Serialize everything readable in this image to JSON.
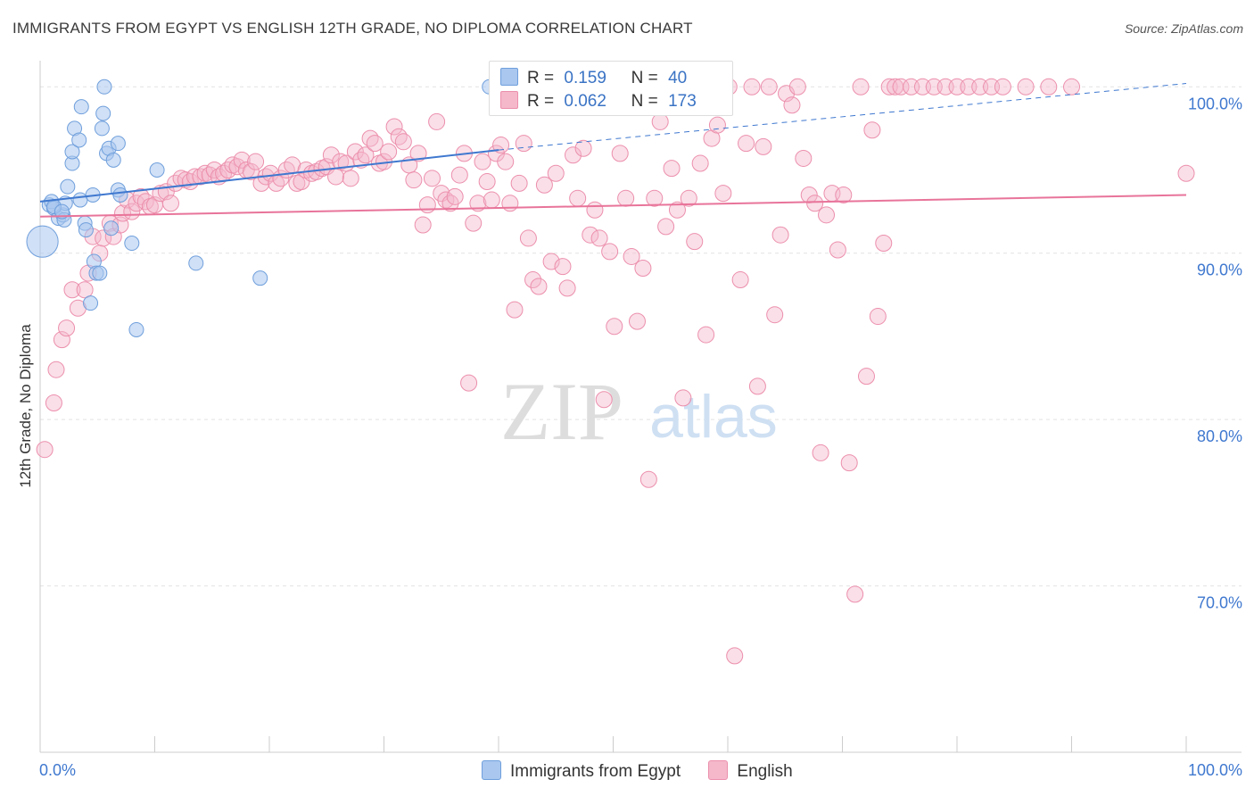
{
  "header": {
    "title": "IMMIGRANTS FROM EGYPT VS ENGLISH 12TH GRADE, NO DIPLOMA CORRELATION CHART",
    "source": "Source: ZipAtlas.com"
  },
  "legend": {
    "rows": [
      {
        "r_label": "R =",
        "r_value": "0.159",
        "n_label": "N =",
        "n_value": "40"
      },
      {
        "r_label": "R =",
        "r_value": "0.062",
        "n_label": "N =",
        "n_value": "173"
      }
    ]
  },
  "bottom_legend": {
    "items": [
      {
        "label": "Immigrants from Egypt"
      },
      {
        "label": "English"
      }
    ]
  },
  "watermark": {
    "zip": "ZIP",
    "atlas": "atlas"
  },
  "colors": {
    "blue_fill": "#a9c7ef",
    "blue_stroke": "#6f9fdc",
    "blue_line": "#3f78cf",
    "pink_fill": "#f5b8cb",
    "pink_stroke": "#ec8fac",
    "pink_line": "#e8749a",
    "axis_label": "#3f78cf",
    "grid": "#e2e2e2"
  },
  "chart_data": {
    "type": "scatter",
    "title": "IMMIGRANTS FROM EGYPT VS ENGLISH 12TH GRADE, NO DIPLOMA CORRELATION CHART",
    "xlabel": "",
    "ylabel": "12th Grade, No Diploma",
    "x_tick_labels": [
      "0.0%",
      "100.0%"
    ],
    "y_tick_labels": [
      "100.0%",
      "90.0%",
      "80.0%",
      "70.0%"
    ],
    "y_ticks": [
      100,
      90,
      80,
      70
    ],
    "xlim": [
      0,
      100
    ],
    "ylim": [
      60.0,
      102.0
    ],
    "grid": true,
    "legend_position": "top-center",
    "series": [
      {
        "name": "Immigrants from Egypt",
        "r": 0.159,
        "n": 40,
        "trend": {
          "x0": 0,
          "y0": 93.1,
          "x1": 40,
          "y1": 96.2,
          "dashed_to_x": 100,
          "dashed_to_y": 100.2
        },
        "points": [
          [
            0.2,
            90.7,
            2.2
          ],
          [
            0.8,
            92.9,
            1
          ],
          [
            1.0,
            93.1,
            1
          ],
          [
            1.2,
            92.7,
            1
          ],
          [
            1.6,
            92.1,
            1
          ],
          [
            2.0,
            92.3,
            1
          ],
          [
            2.2,
            93.0,
            1
          ],
          [
            2.4,
            94.0,
            1
          ],
          [
            2.8,
            95.4,
            1
          ],
          [
            2.8,
            96.1,
            1
          ],
          [
            3.0,
            97.5,
            1
          ],
          [
            3.4,
            96.8,
            1
          ],
          [
            3.5,
            93.2,
            1
          ],
          [
            3.6,
            98.8,
            1
          ],
          [
            3.9,
            91.8,
            1
          ],
          [
            4.0,
            91.4,
            1
          ],
          [
            4.4,
            87.0,
            1
          ],
          [
            4.6,
            93.5,
            1
          ],
          [
            4.7,
            89.5,
            1
          ],
          [
            4.9,
            88.8,
            1
          ],
          [
            5.2,
            88.8,
            1
          ],
          [
            5.4,
            97.5,
            1
          ],
          [
            5.5,
            98.4,
            1
          ],
          [
            5.6,
            100.0,
            1
          ],
          [
            5.8,
            96.0,
            1
          ],
          [
            6.0,
            96.3,
            1
          ],
          [
            6.2,
            91.5,
            1
          ],
          [
            6.4,
            95.6,
            1
          ],
          [
            6.8,
            96.6,
            1
          ],
          [
            6.8,
            93.8,
            1
          ],
          [
            7.0,
            93.5,
            1
          ],
          [
            8.0,
            90.6,
            1
          ],
          [
            8.4,
            85.4,
            1
          ],
          [
            10.2,
            95.0,
            1
          ],
          [
            13.6,
            89.4,
            1
          ],
          [
            19.2,
            88.5,
            1
          ],
          [
            39.2,
            100.0,
            1
          ],
          [
            1.2,
            92.8,
            1
          ],
          [
            2.1,
            92.0,
            1
          ],
          [
            1.9,
            92.5,
            1
          ]
        ]
      },
      {
        "name": "English",
        "r": 0.062,
        "n": 173,
        "trend": {
          "x0": 0,
          "y0": 92.2,
          "x1": 100,
          "y1": 93.5
        },
        "points": [
          [
            0.4,
            78.2
          ],
          [
            1.2,
            81.0
          ],
          [
            1.4,
            83.0
          ],
          [
            1.9,
            84.8
          ],
          [
            2.3,
            85.5
          ],
          [
            2.8,
            87.8
          ],
          [
            3.3,
            86.7
          ],
          [
            3.9,
            87.8
          ],
          [
            4.2,
            88.8
          ],
          [
            4.6,
            91.0
          ],
          [
            5.2,
            90.0
          ],
          [
            5.5,
            90.9
          ],
          [
            6.1,
            91.8
          ],
          [
            6.4,
            91.0
          ],
          [
            7.0,
            91.7
          ],
          [
            7.2,
            92.4
          ],
          [
            7.6,
            93.2
          ],
          [
            8.0,
            92.5
          ],
          [
            8.4,
            93.0
          ],
          [
            8.8,
            93.4
          ],
          [
            9.2,
            93.1
          ],
          [
            9.6,
            92.8
          ],
          [
            10.0,
            92.9
          ],
          [
            10.5,
            93.6
          ],
          [
            11.0,
            93.7
          ],
          [
            11.4,
            93.0
          ],
          [
            11.8,
            94.2
          ],
          [
            12.3,
            94.5
          ],
          [
            12.7,
            94.4
          ],
          [
            13.1,
            94.3
          ],
          [
            13.5,
            94.6
          ],
          [
            14.0,
            94.6
          ],
          [
            14.4,
            94.8
          ],
          [
            14.8,
            94.7
          ],
          [
            15.2,
            95.0
          ],
          [
            15.6,
            94.6
          ],
          [
            16.0,
            94.8
          ],
          [
            16.4,
            95.0
          ],
          [
            16.8,
            95.3
          ],
          [
            17.2,
            95.2
          ],
          [
            17.6,
            95.6
          ],
          [
            18.0,
            95.0
          ],
          [
            18.4,
            94.9
          ],
          [
            18.8,
            95.5
          ],
          [
            19.3,
            94.2
          ],
          [
            19.7,
            94.6
          ],
          [
            20.1,
            94.8
          ],
          [
            20.6,
            94.2
          ],
          [
            21.0,
            94.5
          ],
          [
            21.5,
            95.0
          ],
          [
            22.0,
            95.3
          ],
          [
            22.4,
            94.2
          ],
          [
            22.8,
            94.3
          ],
          [
            23.2,
            95.0
          ],
          [
            23.7,
            94.8
          ],
          [
            24.1,
            94.9
          ],
          [
            24.6,
            95.1
          ],
          [
            25.0,
            95.2
          ],
          [
            25.4,
            95.9
          ],
          [
            25.8,
            94.6
          ],
          [
            26.2,
            95.5
          ],
          [
            26.7,
            95.4
          ],
          [
            27.1,
            94.5
          ],
          [
            27.5,
            96.1
          ],
          [
            28.0,
            95.6
          ],
          [
            28.4,
            95.9
          ],
          [
            28.8,
            96.9
          ],
          [
            29.2,
            96.6
          ],
          [
            29.6,
            95.4
          ],
          [
            30.0,
            95.5
          ],
          [
            30.4,
            96.1
          ],
          [
            30.9,
            97.6
          ],
          [
            31.3,
            97.0
          ],
          [
            31.7,
            96.7
          ],
          [
            32.2,
            95.3
          ],
          [
            32.6,
            94.4
          ],
          [
            33.0,
            96.0
          ],
          [
            33.4,
            91.7
          ],
          [
            33.8,
            92.9
          ],
          [
            34.2,
            94.5
          ],
          [
            34.6,
            97.9
          ],
          [
            35.0,
            93.6
          ],
          [
            35.4,
            93.2
          ],
          [
            35.8,
            93.0
          ],
          [
            36.2,
            93.4
          ],
          [
            36.6,
            94.7
          ],
          [
            37.0,
            96.0
          ],
          [
            37.4,
            82.2
          ],
          [
            37.8,
            91.8
          ],
          [
            38.2,
            93.0
          ],
          [
            38.6,
            95.5
          ],
          [
            39.0,
            94.3
          ],
          [
            39.4,
            93.2
          ],
          [
            39.8,
            96.0
          ],
          [
            40.2,
            96.5
          ],
          [
            40.6,
            95.5
          ],
          [
            41.0,
            93.0
          ],
          [
            41.4,
            86.6
          ],
          [
            41.8,
            94.2
          ],
          [
            42.2,
            96.6
          ],
          [
            42.6,
            90.9
          ],
          [
            43.0,
            88.4
          ],
          [
            43.5,
            88.0
          ],
          [
            44.0,
            94.1
          ],
          [
            44.6,
            89.5
          ],
          [
            45.0,
            94.8
          ],
          [
            45.6,
            89.2
          ],
          [
            46.0,
            87.9
          ],
          [
            46.5,
            95.9
          ],
          [
            46.9,
            93.3
          ],
          [
            47.4,
            96.3
          ],
          [
            48.0,
            91.1
          ],
          [
            48.4,
            92.6
          ],
          [
            48.8,
            90.9
          ],
          [
            49.2,
            81.2
          ],
          [
            49.7,
            90.1
          ],
          [
            50.1,
            85.6
          ],
          [
            50.6,
            96.0
          ],
          [
            51.1,
            93.3
          ],
          [
            51.6,
            89.8
          ],
          [
            52.1,
            85.9
          ],
          [
            52.6,
            89.1
          ],
          [
            53.1,
            76.4
          ],
          [
            53.6,
            93.3
          ],
          [
            54.1,
            97.9
          ],
          [
            54.6,
            91.6
          ],
          [
            55.1,
            95.1
          ],
          [
            55.6,
            92.6
          ],
          [
            56.1,
            81.3
          ],
          [
            56.6,
            93.3
          ],
          [
            57.1,
            90.7
          ],
          [
            57.6,
            95.4
          ],
          [
            58.1,
            85.1
          ],
          [
            58.6,
            96.9
          ],
          [
            59.1,
            97.7
          ],
          [
            59.6,
            93.6
          ],
          [
            60.1,
            100.0
          ],
          [
            60.6,
            65.8
          ],
          [
            61.1,
            88.4
          ],
          [
            61.6,
            96.6
          ],
          [
            62.1,
            100.0
          ],
          [
            62.6,
            82.0
          ],
          [
            63.1,
            96.4
          ],
          [
            63.6,
            100.0
          ],
          [
            64.1,
            86.3
          ],
          [
            64.6,
            91.1
          ],
          [
            65.1,
            99.6
          ],
          [
            65.6,
            98.9
          ],
          [
            66.1,
            100.0
          ],
          [
            66.6,
            95.7
          ],
          [
            67.1,
            93.5
          ],
          [
            67.6,
            93.0
          ],
          [
            68.1,
            78.0
          ],
          [
            68.6,
            92.3
          ],
          [
            69.1,
            93.6
          ],
          [
            69.6,
            90.2
          ],
          [
            70.1,
            93.5
          ],
          [
            70.6,
            77.4
          ],
          [
            71.1,
            69.5
          ],
          [
            71.6,
            100.0
          ],
          [
            72.1,
            82.6
          ],
          [
            72.6,
            97.4
          ],
          [
            73.1,
            86.2
          ],
          [
            73.6,
            90.6
          ],
          [
            74.1,
            100.0
          ],
          [
            74.6,
            100.0
          ],
          [
            75.1,
            100.0
          ],
          [
            76.0,
            100.0
          ],
          [
            77.0,
            100.0
          ],
          [
            78.0,
            100.0
          ],
          [
            79.0,
            100.0
          ],
          [
            80.0,
            100.0
          ],
          [
            81.0,
            100.0
          ],
          [
            82.0,
            100.0
          ],
          [
            83.0,
            100.0
          ],
          [
            84.0,
            100.0
          ],
          [
            86.0,
            100.0
          ],
          [
            88.0,
            100.0
          ],
          [
            90.0,
            100.0
          ],
          [
            100.0,
            94.8
          ]
        ]
      }
    ]
  }
}
